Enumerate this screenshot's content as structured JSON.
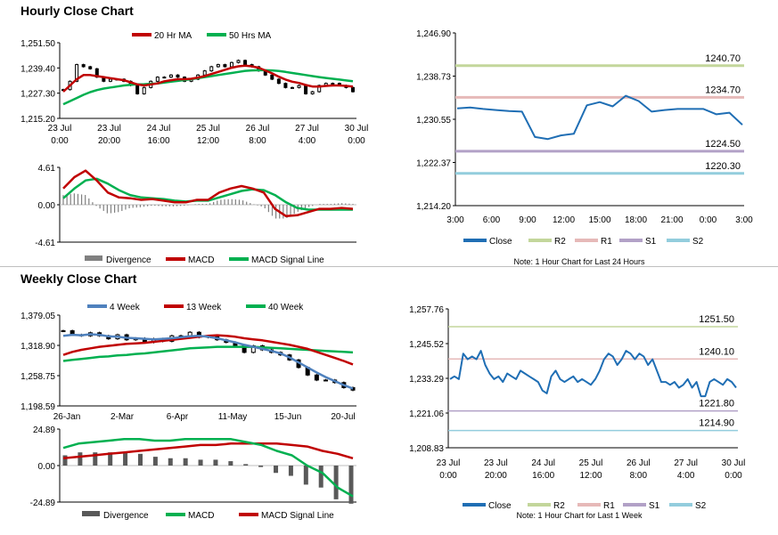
{
  "hourly": {
    "title": "Hourly Close Chart"
  },
  "weekly": {
    "title": "Weekly Close Chart"
  },
  "colors": {
    "ma_short": "#c00000",
    "ma_long": "#00b050",
    "ma4": "#4f81bd",
    "close": "#1f6eb4",
    "r2": "#c3d69b",
    "r1": "#e6b9b8",
    "s1": "#b2a1c7",
    "s2": "#93cddd",
    "hist": "#808080"
  },
  "chart_data": [
    {
      "id": "hourly_price",
      "type": "candlestick",
      "legend": [
        "20 Hr MA",
        "50 Hrs MA"
      ],
      "yticks": [
        "1,251.50",
        "1,239.40",
        "1,227.30",
        "1,215.20"
      ],
      "ylim": [
        1215.2,
        1251.5
      ],
      "xticks": [
        [
          "23 Jul",
          "0:00"
        ],
        [
          "23 Jul",
          "20:00"
        ],
        [
          "24 Jul",
          "16:00"
        ],
        [
          "25 Jul",
          "12:00"
        ],
        [
          "26 Jul",
          "8:00"
        ],
        [
          "27 Jul",
          "4:00"
        ],
        [
          "30 Jul",
          "0:00"
        ]
      ],
      "close": [
        1229,
        1233,
        1241,
        1240,
        1239,
        1235,
        1233,
        1234,
        1234,
        1233,
        1231,
        1227,
        1230,
        1233,
        1235,
        1235,
        1236,
        1235,
        1233,
        1234,
        1236,
        1238,
        1240,
        1241,
        1240,
        1242,
        1243,
        1241,
        1240,
        1238,
        1236,
        1234,
        1232,
        1230,
        1230,
        1231,
        1227,
        1228,
        1231,
        1232,
        1232,
        1231,
        1230,
        1228
      ],
      "ma20": [
        1228,
        1231,
        1234,
        1236,
        1236,
        1235.5,
        1235,
        1234.5,
        1234,
        1233.5,
        1232.5,
        1231.5,
        1231,
        1231.5,
        1232,
        1233,
        1233.5,
        1234,
        1234,
        1234.2,
        1234.8,
        1235.5,
        1236.5,
        1237.5,
        1238.5,
        1239.5,
        1240.2,
        1240.5,
        1240.2,
        1239.5,
        1238.2,
        1236.8,
        1235.2,
        1233.8,
        1232.8,
        1232.2,
        1231.2,
        1230.5,
        1230.5,
        1230.8,
        1231,
        1231,
        1230.8,
        1230.5
      ],
      "ma50": [
        1222,
        1223.5,
        1225,
        1226.5,
        1227.8,
        1228.8,
        1229.5,
        1230,
        1230.5,
        1231,
        1231.3,
        1231.5,
        1231.6,
        1231.8,
        1232,
        1232.4,
        1232.8,
        1233.2,
        1233.6,
        1234,
        1234.5,
        1235,
        1235.5,
        1236,
        1236.5,
        1237,
        1237.5,
        1238,
        1238.2,
        1238.3,
        1238.3,
        1238.2,
        1237.9,
        1237.5,
        1237,
        1236.5,
        1236,
        1235.5,
        1235,
        1234.6,
        1234.2,
        1233.8,
        1233.4,
        1233
      ]
    },
    {
      "id": "hourly_macd",
      "type": "macd",
      "legend": [
        "Divergence",
        "MACD",
        "MACD Signal Line"
      ],
      "yticks": [
        "4.61",
        "0.00",
        "-4.61"
      ],
      "ylim": [
        -4.61,
        4.61
      ],
      "macd": [
        2.0,
        3.4,
        4.2,
        3.0,
        1.5,
        0.9,
        0.8,
        0.6,
        0.7,
        0.5,
        0.3,
        0.3,
        0.6,
        0.6,
        1.5,
        2.0,
        2.3,
        2.0,
        1.5,
        -0.5,
        -1.4,
        -1.3,
        -0.9,
        -0.5,
        -0.5,
        -0.4,
        -0.5
      ],
      "signal": [
        0.8,
        2.0,
        3.0,
        3.2,
        2.6,
        1.8,
        1.2,
        0.9,
        0.8,
        0.7,
        0.5,
        0.4,
        0.5,
        0.5,
        0.9,
        1.3,
        1.7,
        1.9,
        1.8,
        1.2,
        0.3,
        -0.4,
        -0.6,
        -0.6,
        -0.6,
        -0.6,
        -0.6
      ]
    },
    {
      "id": "hourly_levels",
      "type": "line",
      "yticks": [
        "1,246.90",
        "1,238.73",
        "1,230.55",
        "1,222.37",
        "1,214.20"
      ],
      "ylim": [
        1214.2,
        1246.9
      ],
      "xticks": [
        "3:00",
        "6:00",
        "9:00",
        "12:00",
        "15:00",
        "18:00",
        "21:00",
        "0:00",
        "3:00"
      ],
      "close": [
        1232.6,
        1232.8,
        1232.5,
        1232.3,
        1232.1,
        1232.0,
        1227.2,
        1226.8,
        1227.5,
        1227.8,
        1233.2,
        1233.8,
        1233.0,
        1235.0,
        1234.0,
        1232.0,
        1232.3,
        1232.5,
        1232.5,
        1232.5,
        1231.5,
        1231.8,
        1229.5
      ],
      "levels": [
        {
          "name": "R2",
          "value": 1240.7,
          "label": "1240.70"
        },
        {
          "name": "R1",
          "value": 1234.7,
          "label": "1234.70"
        },
        {
          "name": "S1",
          "value": 1224.5,
          "label": "1224.50"
        },
        {
          "name": "S2",
          "value": 1220.3,
          "label": "1220.30"
        }
      ],
      "legend": [
        "Close",
        "R2",
        "R1",
        "S1",
        "S2"
      ],
      "note": "Note: 1 Hour Chart for Last 24 Hours"
    },
    {
      "id": "weekly_price",
      "type": "candlestick",
      "legend": [
        "4 Week",
        "13 Week",
        "40 Week"
      ],
      "yticks": [
        "1,379.05",
        "1,318.90",
        "1,258.75",
        "1,198.59"
      ],
      "ylim": [
        1198.59,
        1379.05
      ],
      "xticks": [
        "26-Jan",
        "2-Mar",
        "6-Apr",
        "11-May",
        "15-Jun",
        "20-Jul"
      ],
      "close": [
        1348,
        1340,
        1338,
        1344,
        1338,
        1332,
        1340,
        1330,
        1333,
        1325,
        1332,
        1327,
        1338,
        1336,
        1345,
        1335,
        1338,
        1330,
        1325,
        1318,
        1305,
        1318,
        1310,
        1305,
        1300,
        1290,
        1275,
        1260,
        1250,
        1250,
        1245,
        1235,
        1230
      ],
      "ma4": [
        1338,
        1340,
        1339,
        1341,
        1340,
        1337,
        1336,
        1334,
        1333,
        1332,
        1331,
        1332,
        1333,
        1335,
        1337,
        1338,
        1336,
        1333,
        1329,
        1325,
        1320,
        1316,
        1312,
        1308,
        1303,
        1295,
        1285,
        1275,
        1265,
        1256,
        1248,
        1240,
        1233
      ],
      "ma13": [
        1300,
        1306,
        1310,
        1313,
        1316,
        1318,
        1320,
        1322,
        1323,
        1324,
        1326,
        1328,
        1330,
        1332,
        1334,
        1336,
        1338,
        1339,
        1338,
        1336,
        1333,
        1331,
        1329,
        1326,
        1323,
        1320,
        1316,
        1312,
        1306,
        1300,
        1294,
        1288,
        1281
      ],
      "ma40": [
        1288,
        1290,
        1292,
        1294,
        1296,
        1297,
        1299,
        1300,
        1302,
        1303,
        1305,
        1307,
        1309,
        1311,
        1313,
        1314,
        1315,
        1316,
        1316,
        1316,
        1316,
        1316,
        1315,
        1314,
        1313,
        1312,
        1311,
        1310,
        1309,
        1308,
        1307,
        1306,
        1305
      ]
    },
    {
      "id": "weekly_macd",
      "type": "macd",
      "legend": [
        "Divergence",
        "MACD",
        "MACD Signal Line"
      ],
      "yticks": [
        "24.89",
        "0.00",
        "-24.89"
      ],
      "ylim": [
        -24.89,
        24.89
      ],
      "macd": [
        12,
        15,
        16,
        17,
        18,
        18,
        17,
        17,
        18,
        18,
        18,
        18,
        16,
        14,
        10,
        7,
        0,
        -5,
        -15,
        -21
      ],
      "signal": [
        5,
        6,
        7,
        8,
        9,
        10,
        11,
        12,
        13,
        14,
        14,
        15,
        15,
        15,
        15,
        14,
        13,
        10,
        8,
        5
      ]
    },
    {
      "id": "weekly_levels",
      "type": "line",
      "yticks": [
        "1,257.76",
        "1,245.52",
        "1,233.29",
        "1,221.06",
        "1,208.83"
      ],
      "ylim": [
        1208.83,
        1257.76
      ],
      "xticks": [
        [
          "23 Jul",
          "0:00"
        ],
        [
          "23 Jul",
          "20:00"
        ],
        [
          "24 Jul",
          "16:00"
        ],
        [
          "25 Jul",
          "12:00"
        ],
        [
          "26 Jul",
          "8:00"
        ],
        [
          "27 Jul",
          "4:00"
        ],
        [
          "30 Jul",
          "0:00"
        ]
      ],
      "close": [
        1233,
        1234,
        1233,
        1242,
        1240,
        1241,
        1240,
        1243,
        1238,
        1235,
        1233,
        1234,
        1232,
        1235,
        1234,
        1233,
        1236,
        1235,
        1234,
        1233,
        1232,
        1229,
        1228,
        1234,
        1236,
        1233,
        1232,
        1233,
        1234,
        1232,
        1233,
        1232,
        1231,
        1233,
        1236,
        1240,
        1242,
        1241,
        1238,
        1240,
        1243,
        1242,
        1240,
        1242,
        1241,
        1238,
        1240,
        1236,
        1232,
        1232,
        1231,
        1232,
        1230,
        1231,
        1233,
        1230,
        1232,
        1227,
        1227,
        1232,
        1233,
        1232,
        1231,
        1233,
        1232,
        1230
      ],
      "levels": [
        {
          "name": "R2",
          "value": 1251.5,
          "label": "1251.50"
        },
        {
          "name": "R1",
          "value": 1240.1,
          "label": "1240.10"
        },
        {
          "name": "S1",
          "value": 1221.8,
          "label": "1221.80"
        },
        {
          "name": "S2",
          "value": 1214.9,
          "label": "1214.90"
        }
      ],
      "legend": [
        "Close",
        "R2",
        "R1",
        "S1",
        "S2"
      ],
      "note": "Note: 1 Hour Chart for Last 1 Week"
    }
  ]
}
